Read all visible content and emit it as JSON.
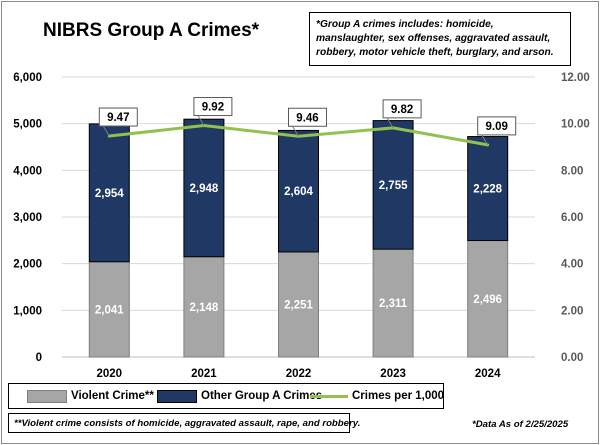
{
  "title": "NIBRS Group A Crimes*",
  "note_top": "*Group A crimes includes: homicide, manslaughter, sex offenses, aggravated assault, robbery, motor vehicle theft, burglary, and arson.",
  "note_bottom": "**Violent crime consists of homicide, aggravated assault, rape, and robbery.",
  "date_note": "*Data As of 2/25/2025",
  "legend": {
    "violent": "Violent Crime**",
    "other": "Other Group A Crimes",
    "rate": "Crimes per 1,000"
  },
  "colors": {
    "violent": "#a6a6a6",
    "other": "#1f3864",
    "rate": "#92c14f",
    "grid": "#d9d9d9"
  },
  "chart_data": {
    "type": "bar",
    "stacked": true,
    "title": "NIBRS Group A Crimes*",
    "categories": [
      "2020",
      "2021",
      "2022",
      "2023",
      "2024"
    ],
    "series": [
      {
        "name": "Violent Crime**",
        "type": "bar",
        "axis": "left",
        "values": [
          2041,
          2148,
          2251,
          2311,
          2496
        ]
      },
      {
        "name": "Other Group A Crimes",
        "type": "bar",
        "axis": "left",
        "values": [
          2954,
          2948,
          2604,
          2755,
          2228
        ]
      },
      {
        "name": "Crimes per 1,000",
        "type": "line",
        "axis": "right",
        "values": [
          9.47,
          9.92,
          9.46,
          9.82,
          9.09
        ]
      }
    ],
    "ylim": [
      0,
      6000
    ],
    "y_ticks": [
      "0",
      "1,000",
      "2,000",
      "3,000",
      "4,000",
      "5,000",
      "6,000"
    ],
    "y2lim": [
      0,
      12
    ],
    "y2_ticks": [
      "0.00",
      "2.00",
      "4.00",
      "6.00",
      "8.00",
      "10.00",
      "12.00"
    ],
    "violent_labels": [
      "2,041",
      "2,148",
      "2,251",
      "2,311",
      "2,496"
    ],
    "other_labels": [
      "2,954",
      "2,948",
      "2,604",
      "2,755",
      "2,228"
    ],
    "rate_labels": [
      "9.47",
      "9.92",
      "9.46",
      "9.82",
      "9.09"
    ],
    "grid": true,
    "legend_position": "bottom"
  }
}
